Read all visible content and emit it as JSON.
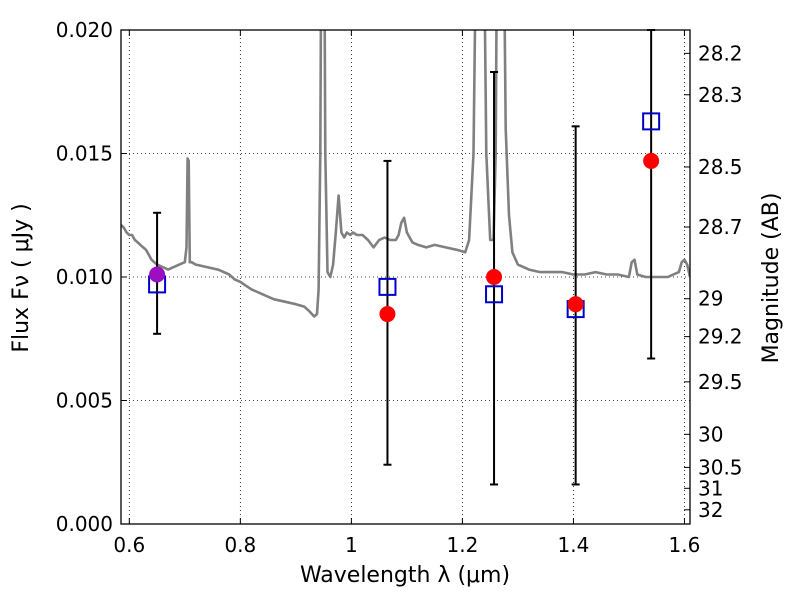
{
  "chart_data": {
    "type": "scatter",
    "xlabel": "Wavelength  λ (μm)",
    "ylabel": "Flux  Fν  ( μJy )",
    "y2label": "Magnitude (AB)",
    "xlim": [
      0.585,
      1.61
    ],
    "ylim": [
      0.0,
      0.02
    ],
    "grid": true,
    "x_ticks": [
      {
        "value": 0.6,
        "label": "0.6"
      },
      {
        "value": 0.8,
        "label": "0.8"
      },
      {
        "value": 1.0,
        "label": "1"
      },
      {
        "value": 1.2,
        "label": "1.2"
      },
      {
        "value": 1.4,
        "label": "1.4"
      },
      {
        "value": 1.6,
        "label": "1.6"
      }
    ],
    "y_ticks": [
      {
        "value": 0.0,
        "label": "0.000"
      },
      {
        "value": 0.005,
        "label": "0.005"
      },
      {
        "value": 0.01,
        "label": "0.010"
      },
      {
        "value": 0.015,
        "label": "0.015"
      },
      {
        "value": 0.02,
        "label": "0.020"
      }
    ],
    "mag_ticks": [
      {
        "value": 28.2,
        "label": "28.2"
      },
      {
        "value": 28.3,
        "label": "28.3"
      },
      {
        "value": 28.5,
        "label": "28.5"
      },
      {
        "value": 28.7,
        "label": "28.7"
      },
      {
        "value": 29.0,
        "label": "29"
      },
      {
        "value": 29.2,
        "label": "29.2"
      },
      {
        "value": 29.5,
        "label": "29.5"
      },
      {
        "value": 30.0,
        "label": "30"
      },
      {
        "value": 30.5,
        "label": "30.5"
      },
      {
        "value": 31.0,
        "label": "31"
      },
      {
        "value": 32.0,
        "label": "32"
      }
    ],
    "spectrum": {
      "color": "#808080",
      "points": [
        [
          0.585,
          0.0121
        ],
        [
          0.59,
          0.012
        ],
        [
          0.595,
          0.0118
        ],
        [
          0.6,
          0.0117
        ],
        [
          0.605,
          0.0117
        ],
        [
          0.61,
          0.0115
        ],
        [
          0.615,
          0.0114
        ],
        [
          0.62,
          0.0113
        ],
        [
          0.625,
          0.0112
        ],
        [
          0.63,
          0.0111
        ],
        [
          0.635,
          0.0109
        ],
        [
          0.64,
          0.0107
        ],
        [
          0.645,
          0.0106
        ],
        [
          0.65,
          0.0105
        ],
        [
          0.66,
          0.0104
        ],
        [
          0.67,
          0.0103
        ],
        [
          0.68,
          0.0104
        ],
        [
          0.69,
          0.0105
        ],
        [
          0.7,
          0.0106
        ],
        [
          0.703,
          0.0112
        ],
        [
          0.705,
          0.0148
        ],
        [
          0.707,
          0.0147
        ],
        [
          0.709,
          0.0106
        ],
        [
          0.712,
          0.0106
        ],
        [
          0.72,
          0.0105
        ],
        [
          0.74,
          0.0104
        ],
        [
          0.76,
          0.0103
        ],
        [
          0.78,
          0.0101
        ],
        [
          0.79,
          0.0099
        ],
        [
          0.8,
          0.0098
        ],
        [
          0.82,
          0.0095
        ],
        [
          0.84,
          0.0093
        ],
        [
          0.86,
          0.0091
        ],
        [
          0.88,
          0.009
        ],
        [
          0.9,
          0.0089
        ],
        [
          0.915,
          0.0088
        ],
        [
          0.925,
          0.0086
        ],
        [
          0.933,
          0.0084
        ],
        [
          0.938,
          0.0085
        ],
        [
          0.941,
          0.0095
        ],
        [
          0.944,
          0.015
        ],
        [
          0.947,
          0.03
        ],
        [
          0.95,
          0.03
        ],
        [
          0.953,
          0.015
        ],
        [
          0.957,
          0.0102
        ],
        [
          0.962,
          0.01
        ],
        [
          0.967,
          0.0105
        ],
        [
          0.972,
          0.0118
        ],
        [
          0.977,
          0.0133
        ],
        [
          0.982,
          0.0118
        ],
        [
          0.987,
          0.0116
        ],
        [
          0.992,
          0.0118
        ],
        [
          0.998,
          0.0117
        ],
        [
          1.003,
          0.0118
        ],
        [
          1.01,
          0.0117
        ],
        [
          1.02,
          0.0117
        ],
        [
          1.03,
          0.0115
        ],
        [
          1.04,
          0.0112
        ],
        [
          1.05,
          0.0115
        ],
        [
          1.06,
          0.0116
        ],
        [
          1.07,
          0.0115
        ],
        [
          1.08,
          0.0115
        ],
        [
          1.085,
          0.0117
        ],
        [
          1.09,
          0.0122
        ],
        [
          1.095,
          0.0124
        ],
        [
          1.1,
          0.0118
        ],
        [
          1.11,
          0.0114
        ],
        [
          1.12,
          0.0113
        ],
        [
          1.135,
          0.0112
        ],
        [
          1.15,
          0.0113
        ],
        [
          1.17,
          0.0112
        ],
        [
          1.19,
          0.0111
        ],
        [
          1.205,
          0.011
        ],
        [
          1.212,
          0.0115
        ],
        [
          1.22,
          0.015
        ],
        [
          1.228,
          0.03
        ],
        [
          1.236,
          0.03
        ],
        [
          1.243,
          0.015
        ],
        [
          1.25,
          0.0115
        ],
        [
          1.256,
          0.0115
        ],
        [
          1.26,
          0.015
        ],
        [
          1.264,
          0.03
        ],
        [
          1.272,
          0.03
        ],
        [
          1.278,
          0.016
        ],
        [
          1.284,
          0.0125
        ],
        [
          1.29,
          0.011
        ],
        [
          1.3,
          0.0105
        ],
        [
          1.32,
          0.0103
        ],
        [
          1.34,
          0.0102
        ],
        [
          1.36,
          0.0102
        ],
        [
          1.38,
          0.0102
        ],
        [
          1.4,
          0.0101
        ],
        [
          1.42,
          0.0101
        ],
        [
          1.44,
          0.0102
        ],
        [
          1.46,
          0.0101
        ],
        [
          1.48,
          0.0101
        ],
        [
          1.5,
          0.01
        ],
        [
          1.505,
          0.0106
        ],
        [
          1.51,
          0.0107
        ],
        [
          1.515,
          0.0101
        ],
        [
          1.53,
          0.01
        ],
        [
          1.55,
          0.01
        ],
        [
          1.57,
          0.01
        ],
        [
          1.58,
          0.0101
        ],
        [
          1.59,
          0.0102
        ],
        [
          1.595,
          0.0106
        ],
        [
          1.6,
          0.0107
        ],
        [
          1.605,
          0.0105
        ],
        [
          1.61,
          0.01
        ]
      ]
    },
    "errorbars": [
      {
        "x": 0.65,
        "low": 0.0077,
        "high": 0.0126
      },
      {
        "x": 1.065,
        "low": 0.0024,
        "high": 0.0147
      },
      {
        "x": 1.257,
        "low": 0.0016,
        "high": 0.0183
      },
      {
        "x": 1.404,
        "low": 0.0016,
        "high": 0.0161
      },
      {
        "x": 1.54,
        "low": 0.0067,
        "high": 0.02
      }
    ],
    "model_squares": {
      "color": "#0000cc",
      "points": [
        [
          0.65,
          0.0097
        ],
        [
          1.065,
          0.0096
        ],
        [
          1.257,
          0.0093
        ],
        [
          1.404,
          0.0087
        ],
        [
          1.54,
          0.0163
        ]
      ]
    },
    "observed_circles": {
      "color": "#ff0000",
      "points": [
        [
          1.065,
          0.0085
        ],
        [
          1.257,
          0.01
        ],
        [
          1.404,
          0.0089
        ],
        [
          1.54,
          0.0147
        ]
      ]
    },
    "highlight_circle": {
      "color": "#9a0fc0",
      "points": [
        [
          0.65,
          0.0101
        ]
      ]
    }
  }
}
